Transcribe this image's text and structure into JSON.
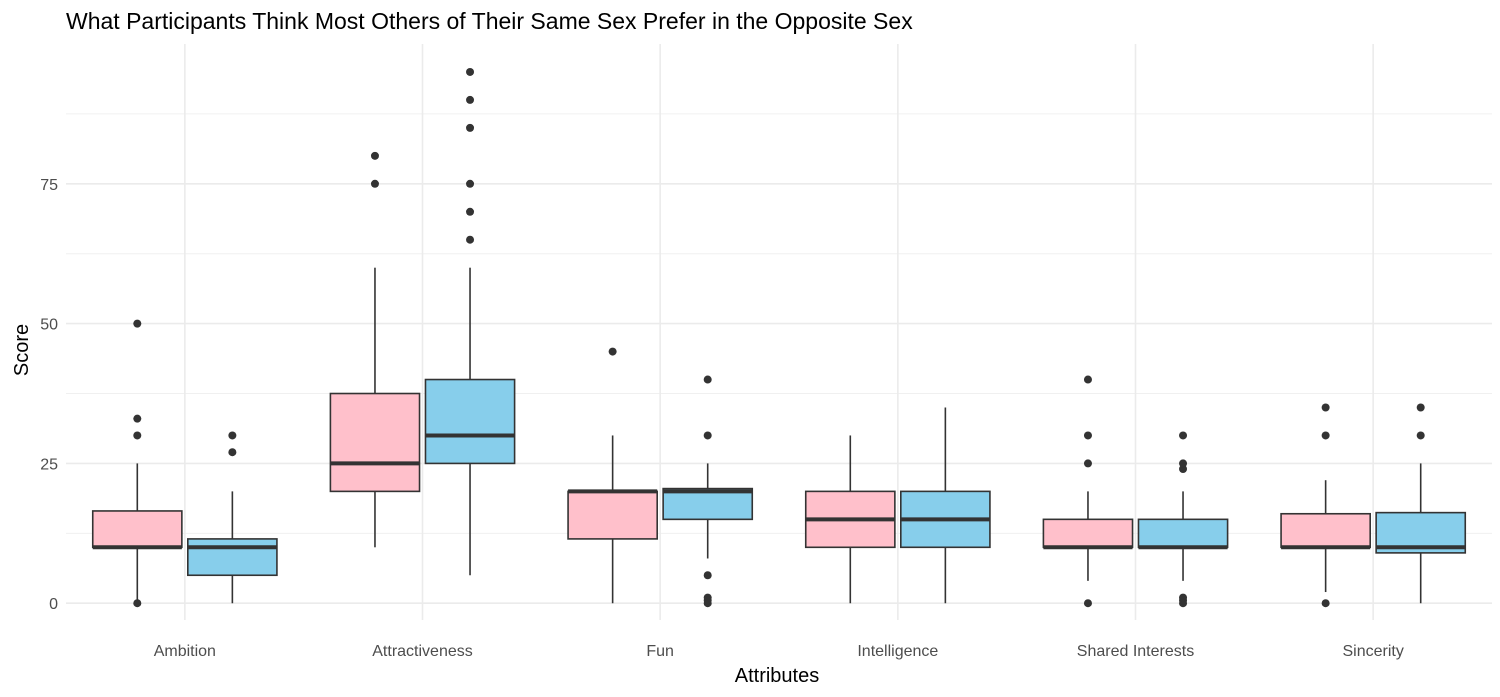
{
  "chart_data": {
    "type": "boxplot",
    "title": "What Participants Think Most Others of Their Same Sex Prefer in the Opposite Sex",
    "xlabel": "Attributes",
    "ylabel": "Score",
    "ylim": [
      -3,
      100
    ],
    "yticks": [
      0,
      25,
      50,
      75
    ],
    "grid": true,
    "legend": "none",
    "categories": [
      "Ambition",
      "Attractiveness",
      "Fun",
      "Intelligence",
      "Shared Interests",
      "Sincerity"
    ],
    "series": [
      {
        "color": "#FFC0CB",
        "boxes": [
          {
            "min": 0.5,
            "q1": 10,
            "median": 10,
            "q3": 16.5,
            "max": 25,
            "outliers": [
              0,
              30,
              33,
              50
            ]
          },
          {
            "min": 10,
            "q1": 20,
            "median": 25,
            "q3": 37.5,
            "max": 60,
            "outliers": [
              75,
              80
            ]
          },
          {
            "min": 0,
            "q1": 11.5,
            "median": 20,
            "q3": 20,
            "max": 30,
            "outliers": [
              45
            ]
          },
          {
            "min": 0,
            "q1": 10,
            "median": 15,
            "q3": 20,
            "max": 30,
            "outliers": []
          },
          {
            "min": 4,
            "q1": 10,
            "median": 10,
            "q3": 15,
            "max": 20,
            "outliers": [
              0,
              25,
              30,
              40
            ]
          },
          {
            "min": 2,
            "q1": 10,
            "median": 10,
            "q3": 16,
            "max": 22,
            "outliers": [
              0,
              30,
              35
            ]
          }
        ]
      },
      {
        "color": "#87CEEB",
        "boxes": [
          {
            "min": 0,
            "q1": 5,
            "median": 10,
            "q3": 11.5,
            "max": 20,
            "outliers": [
              27,
              30
            ]
          },
          {
            "min": 5,
            "q1": 25,
            "median": 30,
            "q3": 40,
            "max": 60,
            "outliers": [
              65,
              70,
              75,
              85,
              90,
              95
            ]
          },
          {
            "min": 8,
            "q1": 15,
            "median": 20,
            "q3": 20.5,
            "max": 25,
            "outliers": [
              0,
              0.5,
              1,
              5,
              30,
              40
            ]
          },
          {
            "min": 0,
            "q1": 10,
            "median": 15,
            "q3": 20,
            "max": 35,
            "outliers": []
          },
          {
            "min": 4,
            "q1": 10,
            "median": 10,
            "q3": 15,
            "max": 20,
            "outliers": [
              0,
              0.5,
              1,
              24,
              25,
              30
            ]
          },
          {
            "min": 0,
            "q1": 9,
            "median": 10,
            "q3": 16.2,
            "max": 25,
            "outliers": [
              30,
              35
            ]
          }
        ]
      }
    ]
  }
}
